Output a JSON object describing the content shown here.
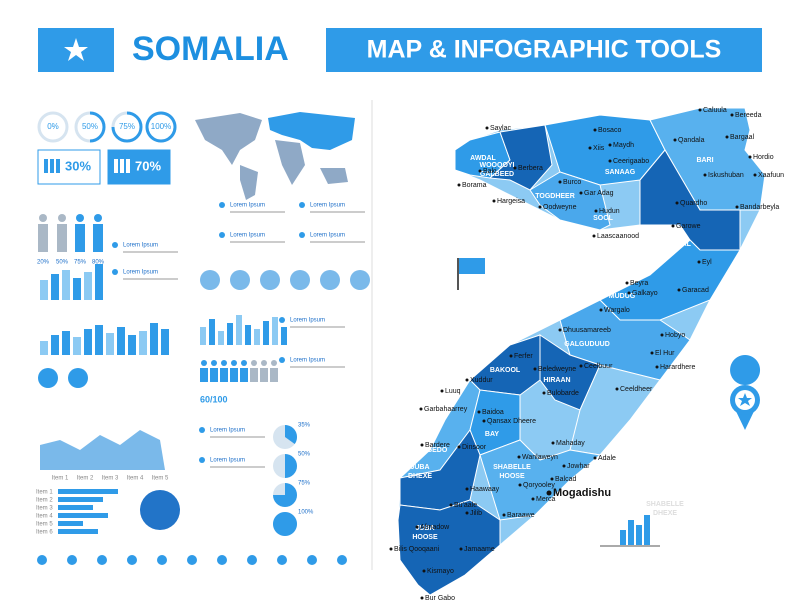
{
  "header": {
    "title": "SOMALIA",
    "subtitle": "MAP & INFOGRAPHIC TOOLS"
  },
  "infographic": {
    "progress": [
      "0%",
      "50%",
      "75%",
      "100%"
    ],
    "stats": [
      "30%",
      "70%"
    ],
    "people_labels": [
      "20%",
      "50%",
      "75%",
      "80%"
    ],
    "score": "60/100",
    "pie_labels": [
      "35%",
      "50%",
      "75%",
      "100%"
    ],
    "item_labels": [
      "Item 1",
      "Item 2",
      "Item 3",
      "Item 4",
      "Item 5"
    ],
    "bar_items": [
      "Item 1",
      "Item 2",
      "Item 3",
      "Item 4",
      "Item 5",
      "Item 6"
    ],
    "lorem": [
      "Lorem Ipsum",
      "Lorem Ipsum",
      "Lorem Ipsum",
      "Lorem Ipsum",
      "Lorem Ipsum",
      "Lorem Ipsum",
      "Lorem Ipsum",
      "Lorem Ipsum",
      "Lorem Ipsum",
      "Lorem Ipsum"
    ]
  },
  "map": {
    "regions": [
      [
        "AWDAL"
      ],
      [
        "WOOQOYI",
        "GALBEED"
      ],
      [
        "TOGDHEER"
      ],
      [
        "SANAAG"
      ],
      [
        "SOOL"
      ],
      [
        "BARI"
      ],
      [
        "NUGAAL"
      ],
      [
        "MUDUG"
      ],
      [
        "GALGUDUUD"
      ],
      [
        "HIRAAN"
      ],
      [
        "BAKOOL"
      ],
      [
        "GEDO"
      ],
      [
        "BAY"
      ],
      [
        "SHABELLE",
        "DHEXE"
      ],
      [
        "SHABELLE",
        "HOOSE"
      ],
      [
        "JUBA",
        "DHEXE"
      ],
      [
        "JUBA",
        "HOOSE"
      ]
    ],
    "cities": [
      "Saylac",
      "Bosaco",
      "Caluula",
      "Bereeda",
      "Bargaal",
      "Hordio",
      "Xaafuun",
      "Qandala",
      "Iskushuban",
      "Bandarbeyla",
      "Quardho",
      "Garowe",
      "Eyl",
      "Laascaanood",
      "Hudun",
      "Burco",
      "Hargeisa",
      "Borama",
      "Baki",
      "Berbera",
      "Xiis",
      "Maydh",
      "Ceerigaabo",
      "Gar Adag",
      "Oodweyne",
      "Beyra",
      "Galkayo",
      "Garacad",
      "Hobyo",
      "El Hur",
      "Harardhere",
      "Dhuusamareeb",
      "Wargalo",
      "Ceelbuur",
      "Ceeldheer",
      "Beledweyne",
      "Bulobarde",
      "Ferfer",
      "Xuddur",
      "Luuq",
      "Garbahaarrey",
      "Baidoa",
      "Qansax Dheere",
      "Bardere",
      "Dinsoor",
      "Mahaday",
      "Jowhar",
      "Adale",
      "Wanlaweyn",
      "Qoryooley",
      "Balcad",
      "Merca",
      "Baraawe",
      "Haawaay",
      "Bu'aale",
      "Afmadow",
      "Jilib",
      "Jamaame",
      "Bilis Qooqaani",
      "Kismayo",
      "Bur Gabo"
    ],
    "capital": "Mogadishu"
  }
}
